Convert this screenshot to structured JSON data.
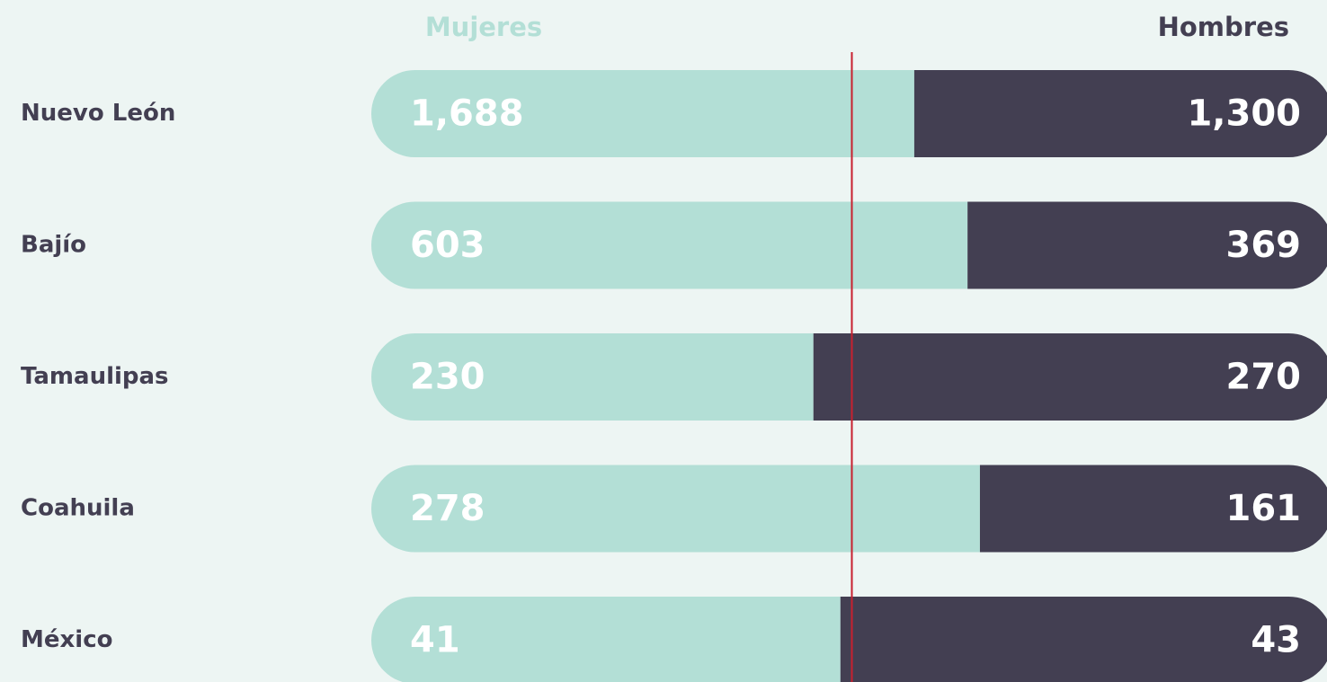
{
  "chart_data": {
    "type": "bar",
    "stacked": "percent",
    "categories": [
      "Nuevo León",
      "Bajío",
      "Tamaulipas",
      "Coahuila",
      "México"
    ],
    "series": [
      {
        "name": "Mujeres",
        "color": "#b3dfd6",
        "values": [
          1688,
          603,
          230,
          278,
          41
        ],
        "value_labels": [
          "1,688",
          "603",
          "230",
          "278",
          "41"
        ]
      },
      {
        "name": "Hombres",
        "color": "#433f52",
        "values": [
          1300,
          369,
          270,
          161,
          43
        ],
        "value_labels": [
          "1,300",
          "369",
          "270",
          "161",
          "43"
        ]
      }
    ]
  }
}
